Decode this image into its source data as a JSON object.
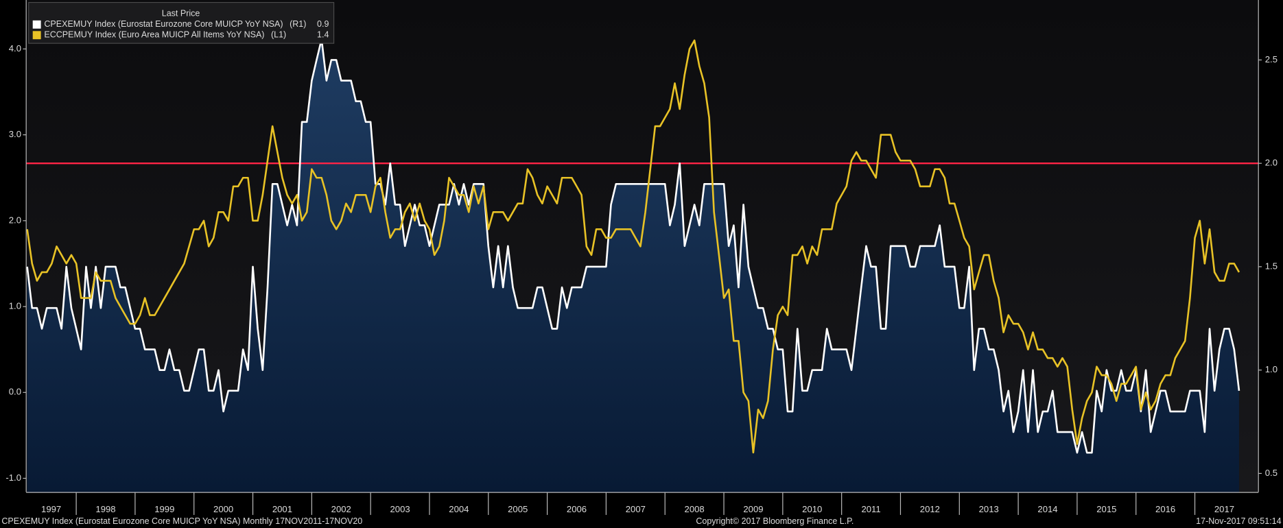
{
  "chart_data": {
    "type": "line",
    "legend_title": "Last Price",
    "xlim": [
      1997.15,
      2018.08
    ],
    "xticks": [
      1997,
      1998,
      1999,
      2000,
      2001,
      2002,
      2003,
      2004,
      2005,
      2006,
      2007,
      2008,
      2009,
      2010,
      2011,
      2012,
      2013,
      2014,
      2015,
      2016,
      2017
    ],
    "ylim": [
      -1.16,
      4.57
    ],
    "yticks": [
      {
        "value": -1,
        "label": "-1.0"
      },
      {
        "value": 0,
        "label": "0.0"
      },
      {
        "value": 1,
        "label": "1.0"
      },
      {
        "value": 2,
        "label": "2.0"
      },
      {
        "value": 3,
        "label": "3.0"
      },
      {
        "value": 4,
        "label": "4.0"
      }
    ],
    "y2lim": [
      0.41,
      2.79
    ],
    "y2ticks": [
      0.5,
      {
        "value": 1,
        "label": "1.0"
      },
      1.5,
      {
        "value": 2,
        "label": "2.0"
      },
      2.5
    ],
    "reference_line": {
      "value": 2,
      "axis": "y2",
      "color": "#ff2446"
    },
    "x": [
      1997.167,
      1997.25,
      1997.333,
      1997.417,
      1997.5,
      1997.583,
      1997.667,
      1997.75,
      1997.833,
      1997.917,
      1998,
      1998.083,
      1998.167,
      1998.25,
      1998.333,
      1998.417,
      1998.5,
      1998.583,
      1998.667,
      1998.75,
      1998.833,
      1998.917,
      1999,
      1999.083,
      1999.167,
      1999.25,
      1999.333,
      1999.417,
      1999.5,
      1999.583,
      1999.667,
      1999.75,
      1999.833,
      1999.917,
      2000,
      2000.083,
      2000.167,
      2000.25,
      2000.333,
      2000.417,
      2000.5,
      2000.583,
      2000.667,
      2000.75,
      2000.833,
      2000.917,
      2001,
      2001.083,
      2001.167,
      2001.25,
      2001.333,
      2001.417,
      2001.5,
      2001.583,
      2001.667,
      2001.75,
      2001.833,
      2001.917,
      2002,
      2002.083,
      2002.167,
      2002.25,
      2002.333,
      2002.417,
      2002.5,
      2002.583,
      2002.667,
      2002.75,
      2002.833,
      2002.917,
      2003,
      2003.083,
      2003.167,
      2003.25,
      2003.333,
      2003.417,
      2003.5,
      2003.583,
      2003.667,
      2003.75,
      2003.833,
      2003.917,
      2004,
      2004.083,
      2004.167,
      2004.25,
      2004.333,
      2004.417,
      2004.5,
      2004.583,
      2004.667,
      2004.75,
      2004.833,
      2004.917,
      2005,
      2005.083,
      2005.167,
      2005.25,
      2005.333,
      2005.417,
      2005.5,
      2005.583,
      2005.667,
      2005.75,
      2005.833,
      2005.917,
      2006,
      2006.083,
      2006.167,
      2006.25,
      2006.333,
      2006.417,
      2006.5,
      2006.583,
      2006.667,
      2006.75,
      2006.833,
      2006.917,
      2007,
      2007.083,
      2007.167,
      2007.25,
      2007.333,
      2007.417,
      2007.5,
      2007.583,
      2007.667,
      2007.75,
      2007.833,
      2007.917,
      2008,
      2008.083,
      2008.167,
      2008.25,
      2008.333,
      2008.417,
      2008.5,
      2008.583,
      2008.667,
      2008.75,
      2008.833,
      2008.917,
      2009,
      2009.083,
      2009.167,
      2009.25,
      2009.333,
      2009.417,
      2009.5,
      2009.583,
      2009.667,
      2009.75,
      2009.833,
      2009.917,
      2010,
      2010.083,
      2010.167,
      2010.25,
      2010.333,
      2010.417,
      2010.5,
      2010.583,
      2010.667,
      2010.75,
      2010.833,
      2010.917,
      2011,
      2011.083,
      2011.167,
      2011.25,
      2011.333,
      2011.417,
      2011.5,
      2011.583,
      2011.667,
      2011.75,
      2011.833,
      2011.917,
      2012,
      2012.083,
      2012.167,
      2012.25,
      2012.333,
      2012.417,
      2012.5,
      2012.583,
      2012.667,
      2012.75,
      2012.833,
      2012.917,
      2013,
      2013.083,
      2013.167,
      2013.25,
      2013.333,
      2013.417,
      2013.5,
      2013.583,
      2013.667,
      2013.75,
      2013.833,
      2013.917,
      2014,
      2014.083,
      2014.167,
      2014.25,
      2014.333,
      2014.417,
      2014.5,
      2014.583,
      2014.667,
      2014.75,
      2014.833,
      2014.917,
      2015,
      2015.083,
      2015.167,
      2015.25,
      2015.333,
      2015.417,
      2015.5,
      2015.583,
      2015.667,
      2015.75,
      2015.833,
      2015.917,
      2016,
      2016.083,
      2016.167,
      2016.25,
      2016.333,
      2016.417,
      2016.5,
      2016.583,
      2016.667,
      2016.75,
      2016.833,
      2016.917,
      2017,
      2017.083,
      2017.167,
      2017.25,
      2017.333,
      2017.417,
      2017.5,
      2017.583,
      2017.667,
      2017.75
    ],
    "series": [
      {
        "name": "CPEXEMUY Index (Eurostat Eurozone Core MUICP YoY NSA)",
        "axis_tag": "(R1)",
        "axis": "y2",
        "color": "#ffffff",
        "area": true,
        "values": [
          1.5,
          1.3,
          1.3,
          1.2,
          1.3,
          1.3,
          1.3,
          1.2,
          1.5,
          1.3,
          1.2,
          1.1,
          1.5,
          1.3,
          1.5,
          1.3,
          1.5,
          1.5,
          1.5,
          1.4,
          1.4,
          1.3,
          1.2,
          1.2,
          1.1,
          1.1,
          1.1,
          1.0,
          1.0,
          1.1,
          1.0,
          1.0,
          0.9,
          0.9,
          1.0,
          1.1,
          1.1,
          0.9,
          0.9,
          1.0,
          0.8,
          0.9,
          0.9,
          0.9,
          1.1,
          1.0,
          1.5,
          1.2,
          1.0,
          1.4,
          1.9,
          1.9,
          1.8,
          1.7,
          1.8,
          1.7,
          2.2,
          2.2,
          2.4,
          2.5,
          2.6,
          2.4,
          2.5,
          2.5,
          2.4,
          2.4,
          2.4,
          2.3,
          2.3,
          2.2,
          2.2,
          1.9,
          1.9,
          1.8,
          2.0,
          1.8,
          1.8,
          1.6,
          1.7,
          1.8,
          1.7,
          1.7,
          1.6,
          1.7,
          1.8,
          1.8,
          1.8,
          1.9,
          1.8,
          1.9,
          1.8,
          1.9,
          1.9,
          1.9,
          1.6,
          1.4,
          1.6,
          1.4,
          1.6,
          1.4,
          1.3,
          1.3,
          1.3,
          1.3,
          1.4,
          1.4,
          1.3,
          1.2,
          1.2,
          1.4,
          1.3,
          1.4,
          1.4,
          1.4,
          1.5,
          1.5,
          1.5,
          1.5,
          1.5,
          1.8,
          1.9,
          1.9,
          1.9,
          1.9,
          1.9,
          1.9,
          1.9,
          1.9,
          1.9,
          1.9,
          1.9,
          1.7,
          1.8,
          2.0,
          1.6,
          1.7,
          1.8,
          1.7,
          1.9,
          1.9,
          1.9,
          1.9,
          1.9,
          1.6,
          1.7,
          1.4,
          1.8,
          1.5,
          1.4,
          1.3,
          1.3,
          1.2,
          1.2,
          1.1,
          1.1,
          0.8,
          0.8,
          1.2,
          0.9,
          0.9,
          1.0,
          1.0,
          1.0,
          1.2,
          1.1,
          1.1,
          1.1,
          1.1,
          1.0,
          1.2,
          1.4,
          1.6,
          1.5,
          1.5,
          1.2,
          1.2,
          1.6,
          1.6,
          1.6,
          1.6,
          1.5,
          1.5,
          1.6,
          1.6,
          1.6,
          1.6,
          1.7,
          1.5,
          1.5,
          1.5,
          1.3,
          1.3,
          1.5,
          1.0,
          1.2,
          1.2,
          1.1,
          1.1,
          1.0,
          0.8,
          0.9,
          0.7,
          0.8,
          1.0,
          0.7,
          1.0,
          0.7,
          0.8,
          0.8,
          0.9,
          0.7,
          0.7,
          0.7,
          0.7,
          0.6,
          0.7,
          0.6,
          0.6,
          0.9,
          0.8,
          1.0,
          0.9,
          0.9,
          1.0,
          0.9,
          0.9,
          1.0,
          0.8,
          1.0,
          0.7,
          0.8,
          0.9,
          0.9,
          0.8,
          0.8,
          0.8,
          0.8,
          0.9,
          0.9,
          0.9,
          0.7,
          1.2,
          0.9,
          1.1,
          1.2,
          1.2,
          1.1,
          0.9
        ]
      },
      {
        "name": "ECCPEMUY Index (Euro Area MUICP All Items YoY NSA)",
        "axis_tag": "(L1)",
        "axis": "y",
        "color": "#e8c226",
        "values": [
          1.9,
          1.5,
          1.3,
          1.4,
          1.4,
          1.5,
          1.7,
          1.6,
          1.5,
          1.6,
          1.5,
          1.1,
          1.1,
          1.1,
          1.4,
          1.3,
          1.3,
          1.3,
          1.1,
          1.0,
          0.9,
          0.8,
          0.8,
          0.9,
          1.1,
          0.9,
          0.9,
          1.0,
          1.1,
          1.2,
          1.3,
          1.4,
          1.5,
          1.7,
          1.9,
          1.9,
          2.0,
          1.7,
          1.8,
          2.1,
          2.1,
          2.0,
          2.4,
          2.4,
          2.5,
          2.5,
          2.0,
          2.0,
          2.3,
          2.7,
          3.1,
          2.8,
          2.5,
          2.3,
          2.2,
          2.3,
          2.0,
          2.1,
          2.6,
          2.5,
          2.5,
          2.3,
          2.0,
          1.9,
          2.0,
          2.2,
          2.1,
          2.3,
          2.3,
          2.3,
          2.1,
          2.4,
          2.5,
          2.1,
          1.8,
          1.9,
          1.9,
          2.1,
          2.2,
          2.0,
          2.2,
          2.0,
          1.9,
          1.6,
          1.7,
          2.0,
          2.5,
          2.4,
          2.3,
          2.3,
          2.1,
          2.4,
          2.2,
          2.4,
          1.9,
          2.1,
          2.1,
          2.1,
          2.0,
          2.1,
          2.2,
          2.2,
          2.6,
          2.5,
          2.3,
          2.2,
          2.4,
          2.3,
          2.2,
          2.5,
          2.5,
          2.5,
          2.4,
          2.3,
          1.7,
          1.6,
          1.9,
          1.9,
          1.8,
          1.8,
          1.9,
          1.9,
          1.9,
          1.9,
          1.8,
          1.7,
          2.1,
          2.6,
          3.1,
          3.1,
          3.2,
          3.3,
          3.6,
          3.3,
          3.7,
          4.0,
          4.1,
          3.8,
          3.6,
          3.2,
          2.1,
          1.6,
          1.1,
          1.2,
          0.6,
          0.6,
          0.0,
          -0.1,
          -0.7,
          -0.2,
          -0.3,
          -0.1,
          0.5,
          0.9,
          1.0,
          0.9,
          1.6,
          1.6,
          1.7,
          1.5,
          1.7,
          1.6,
          1.9,
          1.9,
          1.9,
          2.2,
          2.3,
          2.4,
          2.7,
          2.8,
          2.7,
          2.7,
          2.6,
          2.5,
          3.0,
          3.0,
          3.0,
          2.8,
          2.7,
          2.7,
          2.7,
          2.6,
          2.4,
          2.4,
          2.4,
          2.6,
          2.6,
          2.5,
          2.2,
          2.2,
          2.0,
          1.8,
          1.7,
          1.2,
          1.4,
          1.6,
          1.6,
          1.3,
          1.1,
          0.7,
          0.9,
          0.8,
          0.8,
          0.7,
          0.5,
          0.7,
          0.5,
          0.5,
          0.4,
          0.4,
          0.3,
          0.4,
          0.3,
          -0.2,
          -0.6,
          -0.3,
          -0.1,
          0.0,
          0.3,
          0.2,
          0.2,
          0.1,
          -0.1,
          0.1,
          0.1,
          0.2,
          0.3,
          -0.2,
          0.0,
          -0.2,
          -0.1,
          0.1,
          0.2,
          0.2,
          0.4,
          0.5,
          0.6,
          1.1,
          1.8,
          2.0,
          1.5,
          1.9,
          1.4,
          1.3,
          1.3,
          1.5,
          1.5,
          1.4
        ]
      }
    ],
    "footer": {
      "left": "CPEXEMUY Index (Eurostat Eurozone Core MUICP YoY NSA)  Monthly 17NOV2011-17NOV20",
      "center": "Copyright© 2017 Bloomberg Finance L.P.",
      "right": "17-Nov-2017 09:51:14"
    }
  }
}
